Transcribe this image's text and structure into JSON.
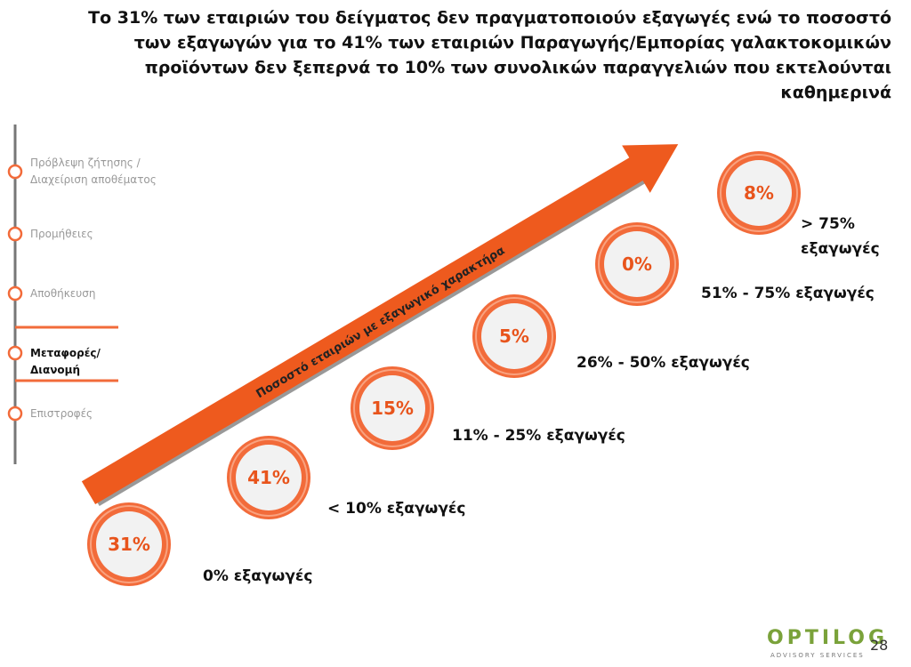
{
  "title_lines": [
    "Το 31% των εταιριών του δείγματος δεν πραγματοποιούν εξαγωγές ενώ το ποσοστό",
    "των εξαγωγών για το 41% των εταιριών Παραγωγής/Εμπορίας γαλακτοκομικών",
    "προϊόντων δεν ξεπερνά το 10% των συνολικών παραγγελιών που εκτελούνται",
    "καθημερινά"
  ],
  "sidebar": {
    "items": [
      {
        "label": "Πρόβλεψη ζήτησης / Διαχείριση αποθέματος",
        "active": false
      },
      {
        "label": "Προμήθειες",
        "active": false
      },
      {
        "label": "Αποθήκευση",
        "active": false
      },
      {
        "label": "Μεταφορές/ Διανομή",
        "active": true
      },
      {
        "label": "Επιστροφές",
        "active": false
      }
    ]
  },
  "arrow_label": "Ποσοστό εταιριών με εξαγωγικό χαρακτήρα",
  "circles": [
    {
      "value": "31%",
      "caption": "0% εξαγωγές"
    },
    {
      "value": "41%",
      "caption": "< 10% εξαγωγές"
    },
    {
      "value": "15%",
      "caption": "11% - 25% εξαγωγές"
    },
    {
      "value": "5%",
      "caption": "26% - 50% εξαγωγές"
    },
    {
      "value": "0%",
      "caption": "51% - 75% εξαγωγές"
    },
    {
      "value": "8%",
      "caption": "> 75% εξαγωγές"
    }
  ],
  "footer": {
    "logo": "OPTILOG",
    "tagline": "ADVISORY SERVICES",
    "page": "28"
  }
}
